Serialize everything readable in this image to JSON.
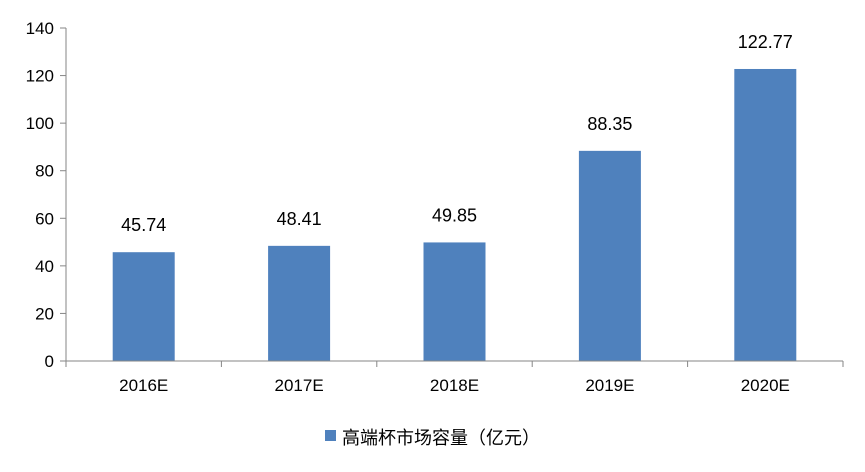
{
  "chart_data": {
    "type": "bar",
    "categories": [
      "2016E",
      "2017E",
      "2018E",
      "2019E",
      "2020E"
    ],
    "series": [
      {
        "name": "高端杯市场容量（亿元）",
        "values": [
          45.74,
          48.41,
          49.85,
          88.35,
          122.77
        ],
        "color": "#4f81bd"
      }
    ],
    "data_labels": [
      "45.74",
      "48.41",
      "49.85",
      "88.35",
      "122.77"
    ],
    "ylim": [
      0,
      140
    ],
    "yticks": [
      0,
      20,
      40,
      60,
      80,
      100,
      120,
      140
    ],
    "grid": false,
    "legend_position": "bottom"
  }
}
